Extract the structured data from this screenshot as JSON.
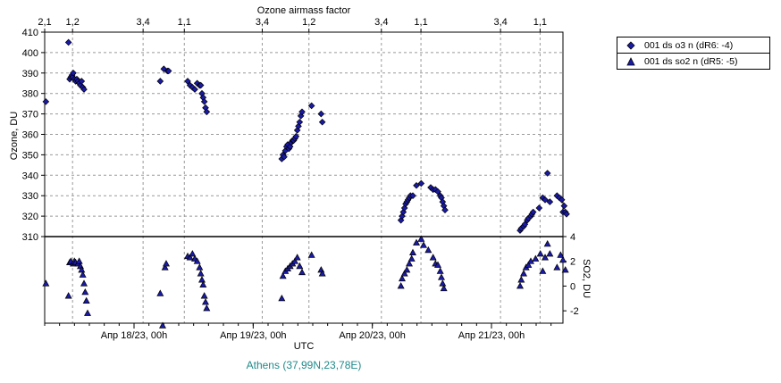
{
  "chart_data": {
    "type": "scatter",
    "title": "",
    "top_axis": {
      "label": "Ozone airmass factor",
      "ticks": [
        {
          "label": "2,1",
          "x": 0.0
        },
        {
          "label": "1,2",
          "x": 0.234
        },
        {
          "label": "3,4",
          "x": 0.826
        },
        {
          "label": "1,1",
          "x": 1.172
        },
        {
          "label": "3,4",
          "x": 1.826
        },
        {
          "label": "1,2",
          "x": 2.218
        },
        {
          "label": "3,4",
          "x": 2.826
        },
        {
          "label": "1,1",
          "x": 3.158
        },
        {
          "label": "3,4",
          "x": 3.826
        },
        {
          "label": "1,1",
          "x": 4.158
        }
      ]
    },
    "x_axis": {
      "label": "UTC",
      "range": [
        0,
        4.35
      ],
      "ticks": [
        {
          "label": "Апр 18/23, 00h",
          "x": 0.75
        },
        {
          "label": "Апр 19/23, 00h",
          "x": 1.75
        },
        {
          "label": "Апр 20/23, 00h",
          "x": 2.75
        },
        {
          "label": "Апр 21/23, 00h",
          "x": 3.75
        }
      ]
    },
    "ozone_axis": {
      "label": "Ozone, DU",
      "range": [
        310,
        410
      ],
      "ticks": [
        310,
        320,
        330,
        340,
        350,
        360,
        370,
        380,
        390,
        400,
        410
      ]
    },
    "so2_axis": {
      "label": "SO2, DU",
      "range": [
        -3,
        4
      ],
      "ticks": [
        -2,
        0,
        2,
        4
      ]
    },
    "grid": true,
    "legend_position": "right",
    "series": [
      {
        "name": "001 ds o3  n (dR6: -4)",
        "marker": "diamond",
        "color": "#1a1aa8",
        "points": [
          [
            0.01,
            376
          ],
          [
            0.2,
            405
          ],
          [
            0.21,
            387
          ],
          [
            0.22,
            388
          ],
          [
            0.23,
            389
          ],
          [
            0.235,
            388
          ],
          [
            0.24,
            390
          ],
          [
            0.25,
            387
          ],
          [
            0.26,
            386
          ],
          [
            0.27,
            387
          ],
          [
            0.28,
            386
          ],
          [
            0.29,
            385
          ],
          [
            0.3,
            384
          ],
          [
            0.31,
            386
          ],
          [
            0.32,
            383
          ],
          [
            0.33,
            382
          ],
          [
            0.97,
            386
          ],
          [
            1.0,
            392
          ],
          [
            1.03,
            391
          ],
          [
            1.04,
            391
          ],
          [
            1.2,
            386
          ],
          [
            1.22,
            384
          ],
          [
            1.24,
            383
          ],
          [
            1.26,
            382
          ],
          [
            1.28,
            385
          ],
          [
            1.3,
            384
          ],
          [
            1.31,
            384
          ],
          [
            1.32,
            380
          ],
          [
            1.33,
            378
          ],
          [
            1.34,
            376
          ],
          [
            1.35,
            373
          ],
          [
            1.36,
            371
          ],
          [
            1.99,
            348
          ],
          [
            2.0,
            350
          ],
          [
            2.01,
            349
          ],
          [
            2.02,
            352
          ],
          [
            2.03,
            354
          ],
          [
            2.04,
            355
          ],
          [
            2.05,
            353
          ],
          [
            2.06,
            354
          ],
          [
            2.07,
            356
          ],
          [
            2.08,
            357
          ],
          [
            2.09,
            357
          ],
          [
            2.1,
            358
          ],
          [
            2.11,
            359
          ],
          [
            2.12,
            362
          ],
          [
            2.13,
            364
          ],
          [
            2.14,
            366
          ],
          [
            2.15,
            369
          ],
          [
            2.16,
            371
          ],
          [
            2.24,
            374
          ],
          [
            2.32,
            370
          ],
          [
            2.33,
            366
          ],
          [
            2.99,
            318
          ],
          [
            3.0,
            320
          ],
          [
            3.01,
            322
          ],
          [
            3.02,
            324
          ],
          [
            3.03,
            326
          ],
          [
            3.04,
            327
          ],
          [
            3.05,
            328
          ],
          [
            3.06,
            329
          ],
          [
            3.07,
            330
          ],
          [
            3.09,
            330
          ],
          [
            3.12,
            335
          ],
          [
            3.16,
            336
          ],
          [
            3.24,
            334
          ],
          [
            3.26,
            333
          ],
          [
            3.28,
            333
          ],
          [
            3.3,
            332
          ],
          [
            3.32,
            330
          ],
          [
            3.33,
            329
          ],
          [
            3.34,
            327
          ],
          [
            3.35,
            325
          ],
          [
            3.36,
            323
          ],
          [
            3.99,
            313
          ],
          [
            4.0,
            314
          ],
          [
            4.02,
            315
          ],
          [
            4.03,
            316
          ],
          [
            4.05,
            318
          ],
          [
            4.06,
            319
          ],
          [
            4.08,
            320
          ],
          [
            4.09,
            321
          ],
          [
            4.1,
            322
          ],
          [
            4.15,
            324
          ],
          [
            4.18,
            329
          ],
          [
            4.2,
            328
          ],
          [
            4.22,
            341
          ],
          [
            4.24,
            327
          ],
          [
            4.3,
            330
          ],
          [
            4.32,
            329
          ],
          [
            4.34,
            328
          ],
          [
            4.35,
            322
          ],
          [
            4.36,
            325
          ],
          [
            4.37,
            322
          ],
          [
            4.38,
            321
          ]
        ]
      },
      {
        "name": "001 ds so2 n (dR5: -5)",
        "marker": "triangle",
        "color": "#1a1aa8",
        "points": [
          [
            0.01,
            0.2
          ],
          [
            0.2,
            -0.8
          ],
          [
            0.21,
            1.9
          ],
          [
            0.22,
            2.0
          ],
          [
            0.24,
            1.8
          ],
          [
            0.25,
            2.0
          ],
          [
            0.26,
            1.9
          ],
          [
            0.28,
            1.8
          ],
          [
            0.29,
            2.0
          ],
          [
            0.3,
            1.6
          ],
          [
            0.31,
            1.3
          ],
          [
            0.32,
            0.9
          ],
          [
            0.33,
            0.2
          ],
          [
            0.34,
            -0.5
          ],
          [
            0.35,
            -1.2
          ],
          [
            0.36,
            -2.2
          ],
          [
            0.97,
            -0.6
          ],
          [
            0.99,
            -3.2
          ],
          [
            1.01,
            1.5
          ],
          [
            1.02,
            1.8
          ],
          [
            1.2,
            2.4
          ],
          [
            1.22,
            2.3
          ],
          [
            1.24,
            2.6
          ],
          [
            1.26,
            2.2
          ],
          [
            1.28,
            2.0
          ],
          [
            1.3,
            1.5
          ],
          [
            1.31,
            1.0
          ],
          [
            1.32,
            0.5
          ],
          [
            1.33,
            0.1
          ],
          [
            1.34,
            -0.8
          ],
          [
            1.35,
            -1.3
          ],
          [
            1.36,
            -1.8
          ],
          [
            1.99,
            -1.0
          ],
          [
            2.0,
            0.8
          ],
          [
            2.02,
            1.2
          ],
          [
            2.04,
            1.4
          ],
          [
            2.06,
            1.6
          ],
          [
            2.08,
            1.8
          ],
          [
            2.1,
            2.0
          ],
          [
            2.12,
            2.3
          ],
          [
            2.14,
            1.6
          ],
          [
            2.16,
            1.1
          ],
          [
            2.24,
            2.5
          ],
          [
            2.32,
            1.3
          ],
          [
            2.33,
            1.0
          ],
          [
            2.99,
            0.0
          ],
          [
            3.0,
            0.6
          ],
          [
            3.02,
            1.0
          ],
          [
            3.04,
            1.3
          ],
          [
            3.06,
            1.8
          ],
          [
            3.08,
            2.2
          ],
          [
            3.09,
            2.7
          ],
          [
            3.12,
            3.5
          ],
          [
            3.16,
            3.8
          ],
          [
            3.18,
            3.3
          ],
          [
            3.22,
            2.9
          ],
          [
            3.26,
            2.3
          ],
          [
            3.28,
            1.8
          ],
          [
            3.3,
            1.7
          ],
          [
            3.32,
            1.2
          ],
          [
            3.33,
            0.7
          ],
          [
            3.34,
            0.2
          ],
          [
            3.35,
            -0.2
          ],
          [
            3.99,
            0.0
          ],
          [
            4.0,
            0.5
          ],
          [
            4.02,
            1.0
          ],
          [
            4.04,
            1.5
          ],
          [
            4.06,
            1.7
          ],
          [
            4.08,
            2.0
          ],
          [
            4.12,
            2.2
          ],
          [
            4.16,
            2.6
          ],
          [
            4.18,
            1.2
          ],
          [
            4.2,
            2.3
          ],
          [
            4.22,
            3.4
          ],
          [
            4.24,
            2.6
          ],
          [
            4.3,
            1.5
          ],
          [
            4.33,
            2.5
          ],
          [
            4.35,
            2.1
          ],
          [
            4.37,
            1.3
          ]
        ]
      }
    ]
  },
  "caption": "Athens (37,99N,23,78E)"
}
